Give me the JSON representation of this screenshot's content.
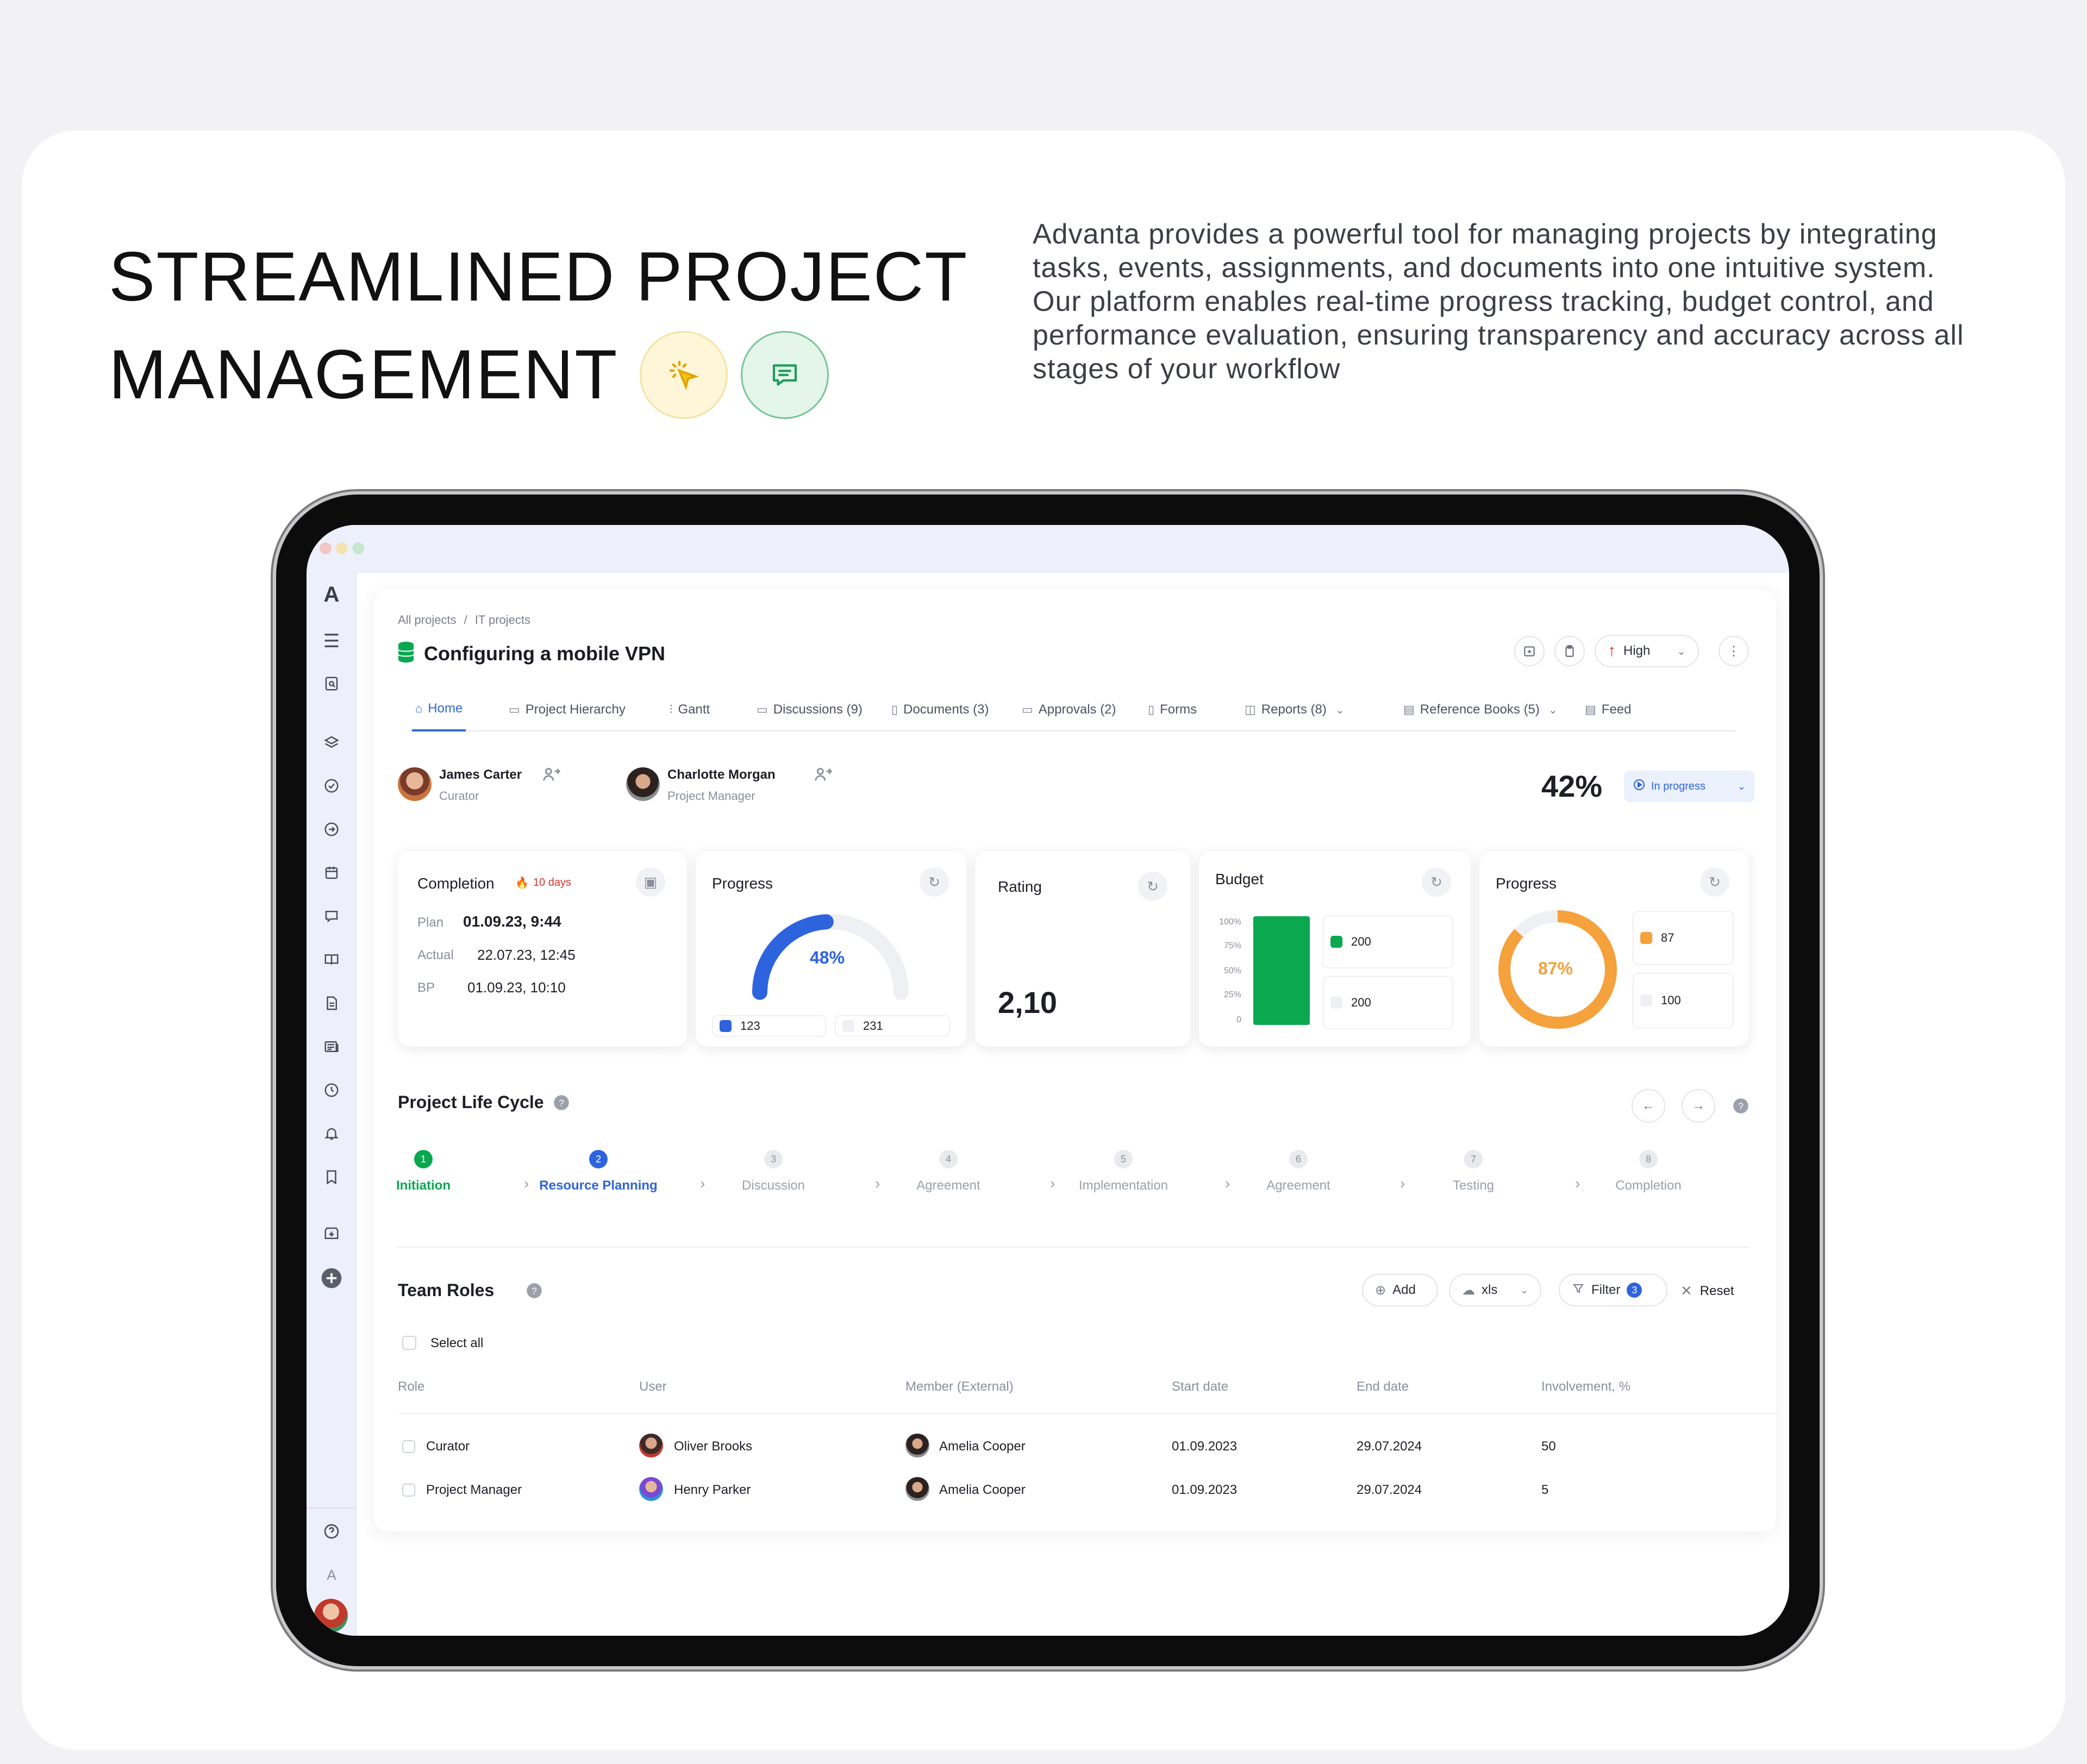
{
  "hero": {
    "title_line1": "STREAMLINED PROJECT",
    "title_line2": "MANAGEMENT",
    "description": "Advanta provides a powerful tool for managing projects by integrating tasks, events, assignments, and documents into one intuitive system. Our platform enables real-time progress tracking, budget control, and performance evaluation, ensuring transparency and accuracy across all stages of your workflow",
    "badge_icons": [
      "cursor-click-icon",
      "chat-message-icon"
    ]
  },
  "app": {
    "logo": "A",
    "sidebar_icons": [
      "menu-icon",
      "search-doc-icon",
      "layers-icon",
      "check-circle-icon",
      "arrow-circle-icon",
      "calendar-icon",
      "chat-icon",
      "book-icon",
      "document-icon",
      "news-icon",
      "clock-icon",
      "bell-icon",
      "bookmark-icon",
      "inbox-icon",
      "plus-icon",
      "help-icon",
      "logo-small-icon",
      "user-avatar"
    ],
    "breadcrumb": [
      "All projects",
      "/",
      "IT projects"
    ],
    "title": "Configuring a mobile VPN",
    "priority": "High",
    "tabs": [
      {
        "label": "Home",
        "icon": "home-icon"
      },
      {
        "label": "Project Hierarchy",
        "icon": "folder-icon"
      },
      {
        "label": "Gantt",
        "icon": "gantt-icon"
      },
      {
        "label": "Discussions (9)",
        "icon": "chat-icon"
      },
      {
        "label": "Documents (3)",
        "icon": "document-icon"
      },
      {
        "label": "Approvals (2)",
        "icon": "book-icon"
      },
      {
        "label": "Forms",
        "icon": "form-icon"
      },
      {
        "label": "Reports (8)",
        "icon": "report-icon"
      },
      {
        "label": "Reference Books (5)",
        "icon": "reference-icon"
      },
      {
        "label": "Feed",
        "icon": "feed-icon"
      }
    ],
    "people": [
      {
        "name": "James Carter",
        "role": "Curator"
      },
      {
        "name": "Charlotte Morgan",
        "role": "Project Manager"
      }
    ],
    "overall_percent": "42%",
    "status": "In progress",
    "completion": {
      "title": "Completion",
      "overdue": "10 days",
      "rows": [
        {
          "label": "Plan",
          "value": "01.09.23, 9:44"
        },
        {
          "label": "Actual",
          "value": "22.07.23, 12:45"
        },
        {
          "label": "BP",
          "value": "01.09.23, 10:10"
        }
      ]
    },
    "progress_gauge": {
      "title": "Progress",
      "value": "48%",
      "fraction": 0.48,
      "legend": [
        "123",
        "231"
      ],
      "color": "#2e63de"
    },
    "rating": {
      "title": "Rating",
      "value": "2,10"
    },
    "budget": {
      "title": "Budget",
      "axis": [
        "100%",
        "75%",
        "50%",
        "25%",
        "0"
      ],
      "fraction": 1.0,
      "legend": [
        "200",
        "200"
      ],
      "color": "#0aa84f"
    },
    "progress_donut": {
      "title": "Progress",
      "value": "87%",
      "fraction": 0.87,
      "legend": [
        "87",
        "100"
      ],
      "color": "#f5a13c"
    },
    "lifecycle": {
      "title": "Project Life Cycle",
      "steps": [
        {
          "num": "1",
          "label": "Initiation",
          "state": "done"
        },
        {
          "num": "2",
          "label": "Resource Planning",
          "state": "active"
        },
        {
          "num": "3",
          "label": "Discussion",
          "state": "todo"
        },
        {
          "num": "4",
          "label": "Agreement",
          "state": "todo"
        },
        {
          "num": "5",
          "label": "Implementation",
          "state": "todo"
        },
        {
          "num": "6",
          "label": "Agreement",
          "state": "todo"
        },
        {
          "num": "7",
          "label": "Testing",
          "state": "todo"
        },
        {
          "num": "8",
          "label": "Completion",
          "state": "todo"
        }
      ]
    },
    "team": {
      "title": "Team Roles",
      "add": "Add",
      "export": "xls",
      "filter": "Filter",
      "filter_count": "3",
      "reset": "Reset",
      "select_all": "Select all",
      "columns": [
        "Role",
        "User",
        "Member (External)",
        "Start date",
        "End date",
        "Involvement, %"
      ],
      "rows": [
        {
          "role": "Curator",
          "user": "Oliver Brooks",
          "member": "Amelia Cooper",
          "start": "01.09.2023",
          "end": "29.07.2024",
          "involvement": "50"
        },
        {
          "role": "Project Manager",
          "user": "Henry Parker",
          "member": "Amelia Cooper",
          "start": "01.09.2023",
          "end": "29.07.2024",
          "involvement": "5"
        }
      ]
    }
  }
}
